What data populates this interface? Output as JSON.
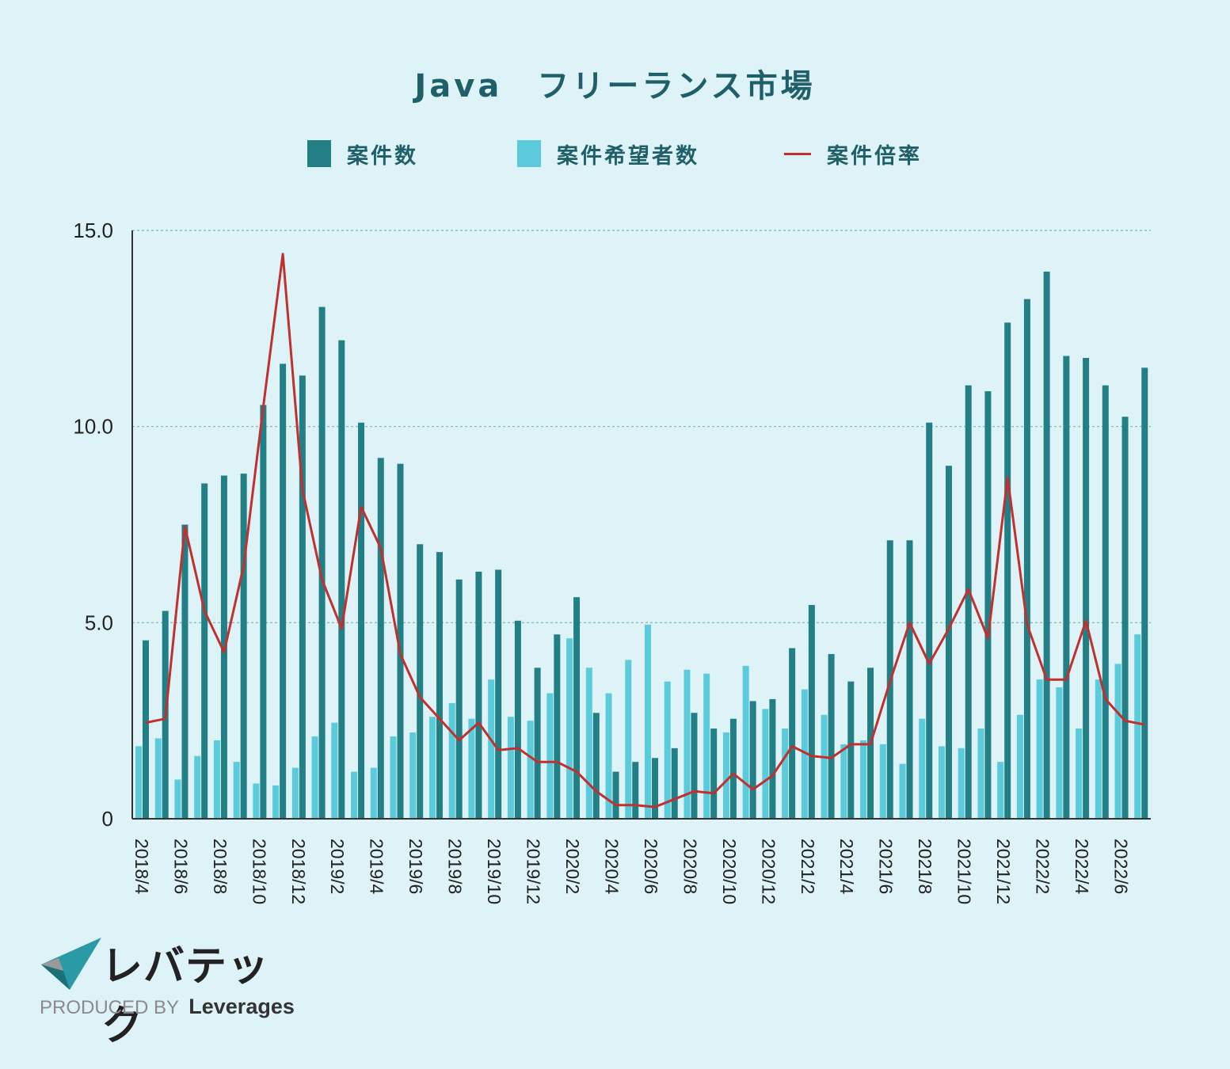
{
  "title": "Java　フリーランス市場",
  "legend": {
    "cases": "案件数",
    "applicants": "案件希望者数",
    "ratio": "案件倍率"
  },
  "colors": {
    "cases": "#237f86",
    "applicants": "#5bcadb",
    "ratio": "#c0302e",
    "grid": "#6fb2b6",
    "axis": "#333333",
    "text": "#1f5f68"
  },
  "chart_data": {
    "type": "bar+line",
    "title": "Java　フリーランス市場",
    "ylim": [
      0,
      15
    ],
    "yticks": [
      {
        "value": 0,
        "label": "0"
      },
      {
        "value": 5,
        "label": "5.0"
      },
      {
        "value": 10,
        "label": "10.0"
      },
      {
        "value": 15,
        "label": "15.0"
      }
    ],
    "grid": true,
    "categories": [
      "2018/4",
      "2018/5",
      "2018/6",
      "2018/7",
      "2018/8",
      "2018/9",
      "2018/10",
      "2018/11",
      "2018/12",
      "2019/1",
      "2019/2",
      "2019/3",
      "2019/4",
      "2019/5",
      "2019/6",
      "2019/7",
      "2019/8",
      "2019/9",
      "2019/10",
      "2019/11",
      "2019/12",
      "2020/1",
      "2020/2",
      "2020/3",
      "2020/4",
      "2020/5",
      "2020/6",
      "2020/7",
      "2020/8",
      "2020/9",
      "2020/10",
      "2020/11",
      "2020/12",
      "2021/1",
      "2021/2",
      "2021/3",
      "2021/4",
      "2021/5",
      "2021/6",
      "2021/7",
      "2021/8",
      "2021/9",
      "2021/10",
      "2021/11",
      "2021/12",
      "2022/1",
      "2022/2",
      "2022/3",
      "2022/4",
      "2022/5",
      "2022/6",
      "2022/7"
    ],
    "xtick_labels": [
      "2018/4",
      "2018/6",
      "2018/8",
      "2018/10",
      "2018/12",
      "2019/2",
      "2019/4",
      "2019/6",
      "2019/8",
      "2019/10",
      "2019/12",
      "2020/2",
      "2020/4",
      "2020/6",
      "2020/8",
      "2020/10",
      "2020/12",
      "2021/2",
      "2021/4",
      "2021/6",
      "2021/8",
      "2021/10",
      "2021/12",
      "2022/2",
      "2022/4",
      "2022/6"
    ],
    "series": [
      {
        "name": "案件数",
        "type": "bar",
        "values": [
          4.55,
          5.3,
          7.5,
          8.55,
          8.75,
          8.8,
          10.55,
          11.6,
          11.3,
          13.05,
          12.2,
          10.1,
          9.2,
          9.05,
          7.0,
          6.8,
          6.1,
          6.3,
          6.35,
          5.05,
          3.85,
          4.7,
          5.65,
          2.7,
          1.2,
          1.45,
          1.55,
          1.8,
          2.7,
          2.3,
          2.55,
          3.0,
          3.05,
          4.35,
          5.45,
          4.2,
          3.5,
          3.85,
          7.1,
          7.1,
          10.1,
          9.0,
          11.05,
          10.9,
          12.65,
          13.25,
          13.95,
          11.8,
          11.75,
          11.05,
          10.25,
          11.5
        ]
      },
      {
        "name": "案件希望者数",
        "type": "bar",
        "values": [
          1.85,
          2.05,
          1.0,
          1.6,
          2.0,
          1.45,
          0.9,
          0.85,
          1.3,
          2.1,
          2.45,
          1.2,
          1.3,
          2.1,
          2.2,
          2.6,
          2.95,
          2.55,
          3.55,
          2.6,
          2.5,
          3.2,
          4.6,
          3.85,
          3.2,
          4.05,
          4.95,
          3.5,
          3.8,
          3.7,
          2.2,
          3.9,
          2.8,
          2.3,
          3.3,
          2.65,
          1.9,
          2.0,
          1.9,
          1.4,
          2.55,
          1.85,
          1.8,
          2.3,
          1.45,
          2.65,
          3.55,
          3.35,
          2.3,
          3.55,
          3.95,
          4.7
        ]
      },
      {
        "name": "案件倍率",
        "type": "line",
        "values": [
          2.45,
          2.55,
          7.45,
          5.3,
          4.25,
          6.45,
          10.5,
          14.4,
          8.4,
          6.1,
          4.85,
          7.95,
          6.9,
          4.2,
          3.1,
          2.55,
          2.0,
          2.45,
          1.75,
          1.8,
          1.45,
          1.45,
          1.2,
          0.7,
          0.35,
          0.35,
          0.3,
          0.5,
          0.7,
          0.65,
          1.15,
          0.75,
          1.1,
          1.85,
          1.6,
          1.55,
          1.9,
          1.9,
          3.5,
          5.0,
          3.95,
          4.85,
          5.85,
          4.6,
          8.7,
          4.95,
          3.55,
          3.55,
          5.05,
          3.05,
          2.5,
          2.4
        ]
      }
    ]
  },
  "logo": {
    "name": "レバテック",
    "produced_by": "PRODUCED BY",
    "company": "Leverages"
  }
}
